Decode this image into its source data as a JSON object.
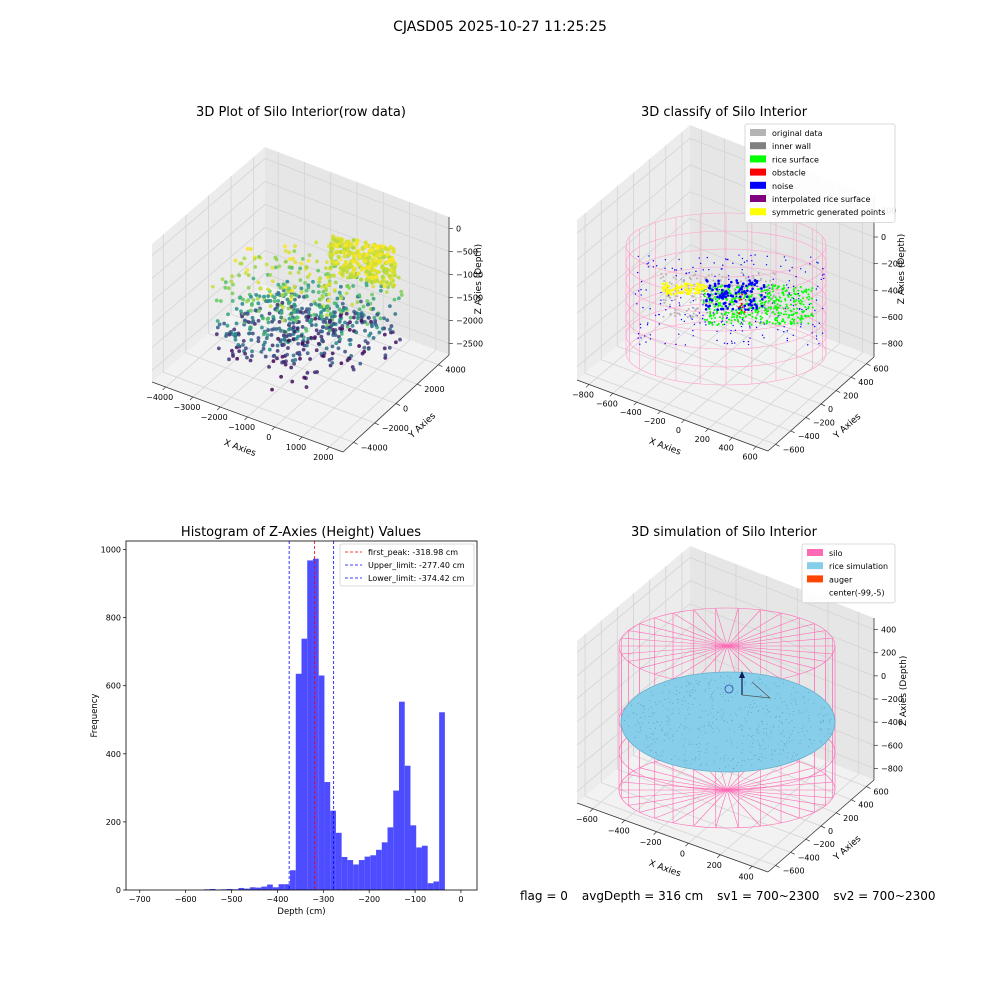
{
  "figure_title": "CJASD05 2025-10-27 11:25:25",
  "footer": {
    "flag": "flag = 0",
    "avg_depth": "avgDepth = 316 cm",
    "sv1": "sv1 = 700~2300",
    "sv2": "sv2 = 700~2300"
  },
  "colors": {
    "original_data": "#b4b4b4",
    "inner_wall": "#808080",
    "rice_surface": "#00ff00",
    "obstacle": "#ff0000",
    "noise": "#0000ff",
    "interpolated": "#800080",
    "symmetric": "#ffff00",
    "silo": "#ff69b4",
    "rice_sim": "#87ceeb",
    "auger": "#ff4500",
    "hist_bar": "#4d4dff"
  },
  "chart_data": [
    {
      "type": "scatter",
      "title": "3D Plot of Silo Interior(row data)",
      "xlabel": "X Axies",
      "ylabel": "Y Axies",
      "zlabel": "Z Axies (Depth)",
      "x_ticks": [
        "−4000",
        "−3000",
        "−2000",
        "−1000",
        "0",
        "1000",
        "2000"
      ],
      "y_ticks": [
        "−4000",
        "−2000",
        "0",
        "2000",
        "4000"
      ],
      "z_ticks": [
        "0",
        "−500",
        "−1000",
        "−1500",
        "−2000",
        "−2500"
      ],
      "xlim": [
        -4500,
        2000
      ],
      "ylim": [
        -4500,
        4500
      ],
      "zlim": [
        -2800,
        0
      ],
      "colormap": "viridis"
    },
    {
      "type": "scatter",
      "title": "3D classify of Silo Interior",
      "xlabel": "X Axies",
      "ylabel": "Y Axies",
      "zlabel": "Z Axies (Depth)",
      "x_ticks": [
        "−800",
        "−600",
        "−400",
        "−200",
        "0",
        "200",
        "400",
        "600"
      ],
      "y_ticks": [
        "−600",
        "−400",
        "−200",
        "0",
        "200",
        "400",
        "600"
      ],
      "z_ticks": [
        "200",
        "0",
        "−200",
        "−400",
        "−600",
        "−800"
      ],
      "legend": [
        "original data",
        "inner wall",
        "rice surface",
        "obstacle",
        "noise",
        "interpolated rice surface",
        "symmetric generated points"
      ],
      "legend_position": "top-right"
    },
    {
      "type": "bar",
      "title": "Histogram of Z-Axies (Height) Values",
      "xlabel": "Depth (cm)",
      "ylabel": "Frequency",
      "x_ticks": [
        -700,
        -600,
        -500,
        -400,
        -300,
        -200,
        -100,
        0
      ],
      "y_ticks": [
        0,
        200,
        400,
        600,
        800,
        1000
      ],
      "xlim": [
        -730,
        35
      ],
      "ylim": [
        0,
        1025
      ],
      "bin_width": 12.5,
      "bins": [
        [
          -560,
          2
        ],
        [
          -547.5,
          3
        ],
        [
          -535,
          1
        ],
        [
          -522.5,
          2
        ],
        [
          -510,
          3
        ],
        [
          -497.5,
          2
        ],
        [
          -485,
          6
        ],
        [
          -472.5,
          4
        ],
        [
          -460,
          8
        ],
        [
          -447.5,
          7
        ],
        [
          -435,
          10
        ],
        [
          -422.5,
          16
        ],
        [
          -410,
          8
        ],
        [
          -397.5,
          17
        ],
        [
          -385,
          17
        ],
        [
          -372.5,
          58
        ],
        [
          -360,
          635
        ],
        [
          -347.5,
          738
        ],
        [
          -335,
          968
        ],
        [
          -322.5,
          973
        ],
        [
          -310,
          630
        ],
        [
          -297.5,
          317
        ],
        [
          -285,
          233
        ],
        [
          -272.5,
          168
        ],
        [
          -260,
          97
        ],
        [
          -247.5,
          88
        ],
        [
          -235,
          75
        ],
        [
          -222.5,
          88
        ],
        [
          -210,
          98
        ],
        [
          -197.5,
          102
        ],
        [
          -185,
          118
        ],
        [
          -172.5,
          140
        ],
        [
          -160,
          184
        ],
        [
          -147.5,
          292
        ],
        [
          -135,
          553
        ],
        [
          -122.5,
          365
        ],
        [
          -110,
          190
        ],
        [
          -97.5,
          125
        ],
        [
          -85,
          130
        ],
        [
          -72.5,
          20
        ],
        [
          -60,
          25
        ],
        [
          -47.5,
          522
        ]
      ],
      "vlines": [
        {
          "label": "first_peak: -318.98 cm",
          "value": -318.98,
          "color": "#ff0000"
        },
        {
          "label": "Upper_limit: -277.40 cm",
          "value": -277.4,
          "color": "#0000ff"
        },
        {
          "label": "Lower_limit: -374.42 cm",
          "value": -374.42,
          "color": "#0000ff"
        }
      ],
      "legend_position": "top-right"
    },
    {
      "type": "scatter",
      "title": "3D simulation of Silo Interior",
      "xlabel": "X Axies",
      "ylabel": "Y Axies",
      "zlabel": "Z Axies (Depth)",
      "x_ticks": [
        "−600",
        "−400",
        "−200",
        "0",
        "200",
        "400"
      ],
      "y_ticks": [
        "−600",
        "−400",
        "−200",
        "0",
        "200",
        "400",
        "600"
      ],
      "z_ticks": [
        "400",
        "200",
        "0",
        "−200",
        "−400",
        "−600",
        "−800"
      ],
      "legend": [
        "silo",
        "rice simulation",
        "auger",
        "center(-99,-5)"
      ],
      "legend_position": "top-right"
    }
  ]
}
